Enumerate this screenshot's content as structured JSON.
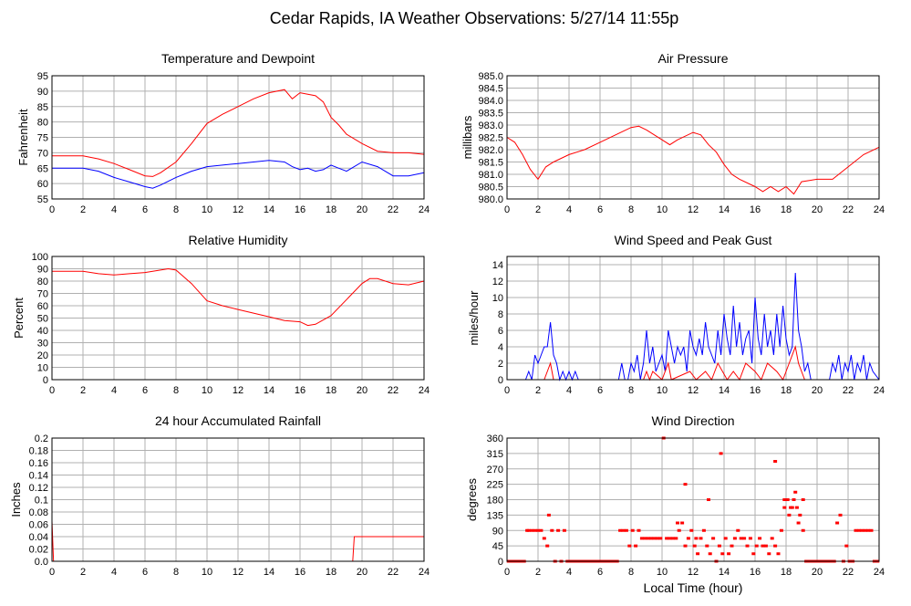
{
  "page": {
    "title": "Cedar Rapids, IA Weather Observations: 5/27/14 11:55p",
    "xlabel": "Local Time (hour)"
  },
  "colors": {
    "red": "#ff0000",
    "blue": "#0000ff",
    "grid": "#b0b0b0"
  },
  "chart_data": [
    {
      "id": "temp",
      "type": "line",
      "title": "Temperature and Dewpoint",
      "xlabel": "",
      "ylabel": "Fahrenheit",
      "xlim": [
        0,
        24
      ],
      "ylim": [
        55,
        95
      ],
      "xticks": [
        0,
        2,
        4,
        6,
        8,
        10,
        12,
        14,
        16,
        18,
        20,
        22,
        24
      ],
      "yticks": [
        55,
        60,
        65,
        70,
        75,
        80,
        85,
        90,
        95
      ],
      "grid": true,
      "series": [
        {
          "color": "#ff0000",
          "x": [
            0,
            1,
            2,
            3,
            4,
            5,
            6,
            6.5,
            7,
            8,
            9,
            10,
            11,
            12,
            13,
            14,
            15,
            15.5,
            16,
            16.5,
            17,
            17.5,
            18,
            18.5,
            19,
            20,
            21,
            22,
            23,
            24
          ],
          "y": [
            69,
            69,
            69,
            68,
            66.5,
            64.5,
            62.5,
            62.3,
            63.5,
            67,
            73,
            79.5,
            82.5,
            85,
            87.5,
            89.5,
            90.5,
            87.5,
            89.5,
            89,
            88.5,
            86.5,
            81.5,
            79,
            76,
            73,
            70.5,
            70,
            70,
            69.5
          ]
        },
        {
          "color": "#0000ff",
          "x": [
            0,
            1,
            2,
            3,
            4,
            5,
            6,
            6.5,
            7,
            8,
            9,
            10,
            11,
            12,
            13,
            14,
            15,
            15.5,
            16,
            16.5,
            17,
            17.5,
            18,
            18.5,
            19,
            20,
            21,
            22,
            23,
            24
          ],
          "y": [
            65,
            65,
            65,
            64,
            62,
            60.5,
            59,
            58.5,
            59.5,
            62,
            64,
            65.5,
            66,
            66.5,
            67,
            67.5,
            67,
            65.5,
            64.5,
            65,
            64,
            64.5,
            66,
            65,
            64,
            67,
            65.5,
            62.5,
            62.5,
            63.5
          ]
        }
      ]
    },
    {
      "id": "pressure",
      "type": "line",
      "title": "Air Pressure",
      "xlabel": "",
      "ylabel": "millibars",
      "xlim": [
        0,
        24
      ],
      "ylim": [
        980.0,
        985.0
      ],
      "xticks": [
        0,
        2,
        4,
        6,
        8,
        10,
        12,
        14,
        16,
        18,
        20,
        22,
        24
      ],
      "yticks": [
        980.0,
        980.5,
        981.0,
        981.5,
        982.0,
        982.5,
        983.0,
        983.5,
        984.0,
        984.5,
        985.0
      ],
      "ytick_labels": [
        "980.0",
        "980.5",
        "981.0",
        "981.5",
        "982.0",
        "982.5",
        "983.0",
        "983.5",
        "984.0",
        "984.5",
        "985.0"
      ],
      "grid": true,
      "series": [
        {
          "color": "#ff0000",
          "x": [
            0,
            0.5,
            1,
            1.5,
            2,
            2.5,
            3,
            4,
            5,
            6,
            7,
            8,
            8.5,
            9,
            10,
            10.5,
            11,
            12,
            12.5,
            13,
            13.5,
            14,
            14.5,
            15,
            16,
            16.5,
            17,
            17.5,
            18,
            18.5,
            19,
            20,
            21,
            22,
            23,
            24
          ],
          "y": [
            982.5,
            982.3,
            981.8,
            981.2,
            980.8,
            981.3,
            981.5,
            981.8,
            982.0,
            982.3,
            982.6,
            982.9,
            982.95,
            982.8,
            982.4,
            982.2,
            982.4,
            982.7,
            982.6,
            982.2,
            981.9,
            981.4,
            981.0,
            980.8,
            980.5,
            980.3,
            980.5,
            980.3,
            980.5,
            980.2,
            980.7,
            980.8,
            980.8,
            981.3,
            981.8,
            982.1
          ]
        }
      ]
    },
    {
      "id": "humidity",
      "type": "line",
      "title": "Relative Humidity",
      "xlabel": "",
      "ylabel": "Percent",
      "xlim": [
        0,
        24
      ],
      "ylim": [
        0,
        100
      ],
      "xticks": [
        0,
        2,
        4,
        6,
        8,
        10,
        12,
        14,
        16,
        18,
        20,
        22,
        24
      ],
      "yticks": [
        0,
        10,
        20,
        30,
        40,
        50,
        60,
        70,
        80,
        90,
        100
      ],
      "grid": true,
      "series": [
        {
          "color": "#ff0000",
          "x": [
            0,
            1,
            2,
            3,
            4,
            5,
            6,
            7,
            7.5,
            8,
            9,
            10,
            11,
            12,
            13,
            14,
            15,
            16,
            16.5,
            17,
            18,
            19,
            20,
            20.5,
            21,
            22,
            23,
            24
          ],
          "y": [
            88,
            88,
            88,
            86,
            85,
            86,
            87,
            89,
            90,
            89,
            78,
            64,
            60,
            57,
            54,
            51,
            48,
            47,
            44,
            45,
            52,
            65,
            78,
            82,
            82,
            78,
            77,
            80
          ]
        }
      ]
    },
    {
      "id": "wind",
      "type": "line",
      "title": "Wind Speed and Peak Gust",
      "xlabel": "",
      "ylabel": "miles/hour",
      "xlim": [
        0,
        24
      ],
      "ylim": [
        0,
        15
      ],
      "xticks": [
        0,
        2,
        4,
        6,
        8,
        10,
        12,
        14,
        16,
        18,
        20,
        22,
        24
      ],
      "yticks": [
        0,
        2,
        4,
        6,
        8,
        10,
        12,
        14
      ],
      "grid": true,
      "series": [
        {
          "color": "#0000ff",
          "x": [
            0,
            1.2,
            1.4,
            1.6,
            1.8,
            2.0,
            2.2,
            2.4,
            2.6,
            2.8,
            3.0,
            3.2,
            3.4,
            3.6,
            3.8,
            4.0,
            4.2,
            4.4,
            4.6,
            7.2,
            7.4,
            7.6,
            7.8,
            8.0,
            8.2,
            8.4,
            8.6,
            8.8,
            9.0,
            9.2,
            9.4,
            9.6,
            9.8,
            10.0,
            10.2,
            10.4,
            10.6,
            10.8,
            11.0,
            11.2,
            11.4,
            11.6,
            11.8,
            12.0,
            12.2,
            12.4,
            12.6,
            12.8,
            13.0,
            13.2,
            13.4,
            13.6,
            13.8,
            14.0,
            14.2,
            14.4,
            14.6,
            14.8,
            15.0,
            15.2,
            15.4,
            15.6,
            15.8,
            16.0,
            16.2,
            16.4,
            16.6,
            16.8,
            17.0,
            17.2,
            17.4,
            17.6,
            17.8,
            18.0,
            18.2,
            18.4,
            18.6,
            18.8,
            19.0,
            19.2,
            19.4,
            19.6,
            20.8,
            21.0,
            21.2,
            21.4,
            21.6,
            21.8,
            22.0,
            22.2,
            22.4,
            22.6,
            22.8,
            23.0,
            23.2,
            23.4,
            23.6,
            24
          ],
          "y": [
            0,
            0,
            1,
            0,
            3,
            2,
            3,
            4,
            4,
            7,
            3,
            2,
            0,
            1,
            0,
            1,
            0,
            1,
            0,
            0,
            2,
            0,
            0,
            2,
            1,
            3,
            0,
            2,
            6,
            2,
            4,
            1,
            2,
            3,
            1,
            6,
            4,
            2,
            4,
            3,
            4,
            1,
            6,
            4,
            3,
            5,
            3,
            7,
            4,
            3,
            2,
            6,
            3,
            8,
            5,
            3,
            9,
            4,
            7,
            3,
            5,
            6,
            2,
            10,
            5,
            3,
            8,
            4,
            6,
            3,
            8,
            4,
            9,
            5,
            3,
            4,
            13,
            6,
            4,
            1,
            2,
            0,
            0,
            2,
            1,
            3,
            0,
            2,
            1,
            3,
            0,
            2,
            1,
            3,
            0,
            2,
            1,
            0
          ]
        },
        {
          "color": "#ff0000",
          "x": [
            0,
            2.4,
            2.6,
            2.8,
            3.0,
            3.2,
            8.8,
            9.0,
            9.2,
            9.4,
            10.0,
            10.4,
            10.6,
            11.8,
            12.2,
            12.8,
            13.2,
            13.6,
            14.2,
            14.6,
            15.0,
            15.4,
            16.0,
            16.4,
            16.8,
            17.4,
            17.8,
            18.2,
            18.6,
            18.8,
            19.0,
            19.2,
            24
          ],
          "y": [
            0,
            0,
            1,
            2,
            0,
            0,
            0,
            1,
            0,
            1,
            0,
            2,
            0,
            1,
            0,
            1,
            0,
            2,
            0,
            1,
            0,
            2,
            1,
            0,
            2,
            1,
            0,
            2,
            4,
            2,
            1,
            0,
            0
          ]
        }
      ]
    },
    {
      "id": "rain",
      "type": "line",
      "title": "24 hour Accumulated Rainfall",
      "xlabel": "",
      "ylabel": "Inches",
      "xlim": [
        0,
        24
      ],
      "ylim": [
        0,
        0.2
      ],
      "xticks": [
        0,
        2,
        4,
        6,
        8,
        10,
        12,
        14,
        16,
        18,
        20,
        22,
        24
      ],
      "yticks": [
        0,
        0.02,
        0.04,
        0.06,
        0.08,
        0.1,
        0.12,
        0.14,
        0.16,
        0.18,
        0.2
      ],
      "ytick_labels": [
        "0.0",
        "0.02",
        "0.04",
        "0.06",
        "0.08",
        "0.1",
        "0.12",
        "0.14",
        "0.16",
        "0.18",
        "0.2"
      ],
      "grid": true,
      "series": [
        {
          "color": "#ff0000",
          "x": [
            0,
            0.1,
            0.15,
            19.4,
            19.5,
            24
          ],
          "y": [
            0.065,
            0.0,
            0.0,
            0.0,
            0.04,
            0.04
          ]
        }
      ]
    },
    {
      "id": "direction",
      "type": "scatter",
      "title": "Wind Direction",
      "xlabel": "",
      "ylabel": "degrees",
      "xlim": [
        0,
        24
      ],
      "ylim": [
        0,
        360
      ],
      "xticks": [
        0,
        2,
        4,
        6,
        8,
        10,
        12,
        14,
        16,
        18,
        20,
        22,
        24
      ],
      "yticks": [
        0,
        45,
        90,
        135,
        180,
        225,
        270,
        315,
        360
      ],
      "grid": true,
      "series": [
        {
          "color": "#ff0000",
          "x": [
            0.1,
            0.3,
            0.5,
            0.7,
            0.9,
            1.1,
            1.3,
            1.4,
            1.6,
            1.8,
            2.0,
            2.2,
            2.4,
            2.6,
            2.7,
            2.9,
            3.1,
            3.3,
            3.5,
            3.7,
            3.9,
            4.1,
            4.3,
            4.5,
            4.7,
            4.9,
            5.1,
            5.3,
            5.5,
            5.7,
            5.9,
            6.1,
            6.3,
            6.5,
            6.7,
            6.9,
            7.1,
            7.3,
            7.5,
            7.7,
            7.9,
            8.1,
            8.3,
            8.5,
            8.7,
            8.9,
            9.1,
            9.3,
            9.5,
            9.7,
            9.9,
            10.1,
            10.3,
            10.5,
            10.7,
            10.9,
            11.1,
            11.3,
            11.5,
            11.7,
            11.9,
            12.1,
            12.3,
            12.5,
            12.7,
            12.9,
            13.1,
            13.3,
            13.5,
            13.7,
            13.9,
            14.1,
            14.3,
            14.5,
            14.7,
            14.9,
            15.1,
            15.3,
            15.5,
            15.7,
            15.9,
            16.1,
            16.3,
            16.5,
            16.7,
            16.9,
            17.1,
            17.3,
            17.5,
            17.7,
            17.9,
            18.1,
            18.3,
            18.5,
            18.7,
            18.9,
            19.1,
            19.3,
            19.5,
            19.7,
            19.9,
            20.1,
            20.3,
            20.5,
            20.7,
            20.9,
            21.1,
            21.3,
            21.5,
            21.7,
            21.9,
            22.1,
            22.3,
            22.5,
            22.7,
            22.9,
            23.1,
            23.3,
            23.5,
            23.7,
            23.9,
            11.0,
            11.5,
            12.2,
            13.0,
            13.8,
            17.3,
            17.9,
            18.2,
            18.4,
            18.6,
            18.8,
            19.1
          ],
          "y": [
            0,
            0,
            0,
            0,
            0,
            0,
            90,
            90,
            90,
            90,
            90,
            90,
            67,
            45,
            135,
            90,
            0,
            90,
            0,
            90,
            0,
            0,
            0,
            0,
            0,
            0,
            0,
            0,
            0,
            0,
            0,
            0,
            0,
            0,
            0,
            0,
            0,
            90,
            90,
            90,
            45,
            90,
            45,
            90,
            67,
            67,
            67,
            67,
            67,
            67,
            67,
            360,
            67,
            67,
            67,
            67,
            90,
            112,
            45,
            67,
            90,
            45,
            22,
            67,
            90,
            45,
            22,
            67,
            0,
            45,
            22,
            67,
            22,
            45,
            67,
            90,
            67,
            67,
            45,
            67,
            22,
            45,
            67,
            45,
            45,
            22,
            67,
            45,
            22,
            90,
            157,
            180,
            157,
            180,
            157,
            135,
            90,
            0,
            0,
            0,
            0,
            0,
            0,
            0,
            0,
            0,
            0,
            112,
            135,
            0,
            45,
            0,
            0,
            90,
            90,
            90,
            90,
            90,
            90,
            0,
            0,
            112,
            225,
            67,
            180,
            315,
            292,
            180,
            135,
            157,
            202,
            112,
            180
          ]
        }
      ]
    }
  ]
}
